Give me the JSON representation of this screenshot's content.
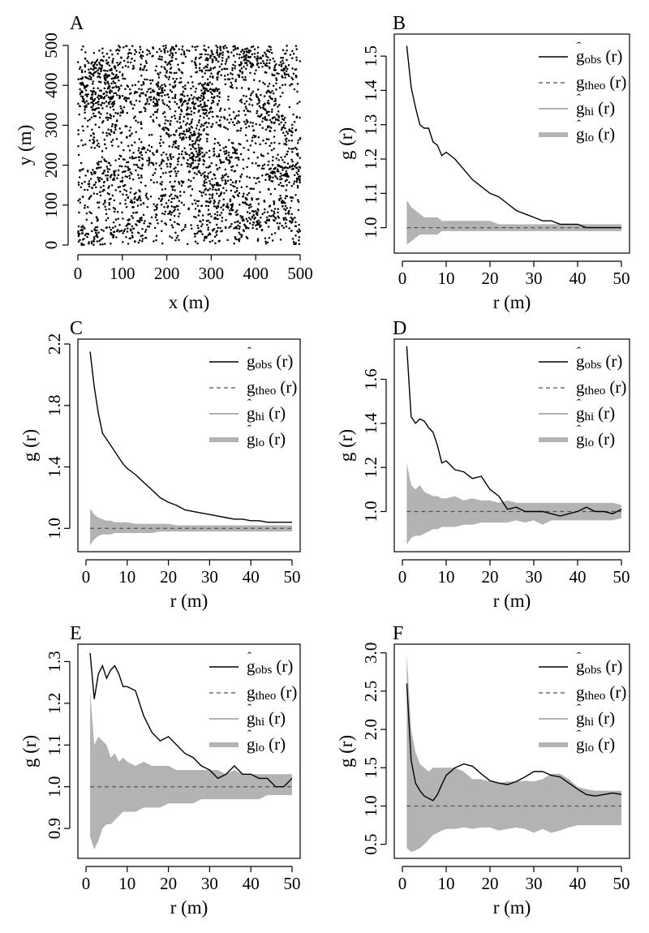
{
  "legend_labels": {
    "obs": {
      "base": "g",
      "sub": "obs",
      "suffix": "(r)",
      "hat": true
    },
    "theo": {
      "base": "g",
      "sub": "theo",
      "suffix": "(r)",
      "hat": false
    },
    "hi": {
      "base": "g",
      "sub": "hi",
      "suffix": "(r)",
      "hat": true
    },
    "lo": {
      "base": "g",
      "sub": "lo",
      "suffix": "(r)",
      "hat": true
    }
  },
  "colors": {
    "observed": "#000000",
    "theoretical": "#555555",
    "envelope": "#b3b3b3",
    "points": "#000000"
  },
  "chart_data": [
    {
      "panel": "A",
      "type": "scatter",
      "xlabel": "x (m)",
      "ylabel": "y (m)",
      "xlim": [
        0,
        500
      ],
      "ylim": [
        0,
        500
      ],
      "xticks": [
        "0",
        "100",
        "200",
        "300",
        "400",
        "500"
      ],
      "yticks": [
        "0",
        "100",
        "200",
        "300",
        "400",
        "500"
      ],
      "point_count": 3000
    },
    {
      "panel": "B",
      "type": "line",
      "xlabel": "r (m)",
      "ylabel": "g (r)",
      "xlim": [
        0,
        50
      ],
      "ylim": [
        0.94,
        1.55
      ],
      "xticks": [
        "0",
        "10",
        "20",
        "30",
        "40",
        "50"
      ],
      "yticks": [
        "1.0",
        "1.1",
        "1.2",
        "1.3",
        "1.4",
        "1.5"
      ],
      "legend": "top-right",
      "r": [
        1,
        2,
        3,
        4,
        5,
        6,
        7,
        8,
        9,
        10,
        12,
        14,
        16,
        18,
        20,
        22,
        24,
        26,
        28,
        30,
        32,
        34,
        36,
        38,
        40,
        42,
        44,
        46,
        48,
        50
      ],
      "g_obs": [
        1.53,
        1.41,
        1.35,
        1.3,
        1.29,
        1.29,
        1.25,
        1.24,
        1.21,
        1.22,
        1.2,
        1.17,
        1.14,
        1.12,
        1.1,
        1.09,
        1.07,
        1.05,
        1.04,
        1.03,
        1.02,
        1.02,
        1.01,
        1.01,
        1.01,
        1.0,
        1.0,
        1.0,
        1.0,
        1.0
      ],
      "g_theo": 1.0,
      "g_hi": [
        1.08,
        1.06,
        1.05,
        1.04,
        1.03,
        1.03,
        1.03,
        1.03,
        1.02,
        1.02,
        1.02,
        1.02,
        1.02,
        1.02,
        1.02,
        1.01,
        1.01,
        1.01,
        1.01,
        1.01,
        1.01,
        1.01,
        1.01,
        1.01,
        1.01,
        1.01,
        1.01,
        1.01,
        1.01,
        1.01
      ],
      "g_lo": [
        0.95,
        0.96,
        0.97,
        0.98,
        0.98,
        0.98,
        0.98,
        0.98,
        0.99,
        0.99,
        0.99,
        0.99,
        0.99,
        0.99,
        0.99,
        0.99,
        0.99,
        0.99,
        0.99,
        0.99,
        0.99,
        0.99,
        0.99,
        0.99,
        0.99,
        0.99,
        0.99,
        0.99,
        0.99,
        0.99
      ]
    },
    {
      "panel": "C",
      "type": "line",
      "xlabel": "r (m)",
      "ylabel": "g (r)",
      "xlim": [
        0,
        50
      ],
      "ylim": [
        0.88,
        2.2
      ],
      "xticks": [
        "0",
        "10",
        "20",
        "30",
        "40",
        "50"
      ],
      "yticks": [
        "1.0",
        "1.4",
        "1.8",
        "2.2"
      ],
      "legend": "top-right",
      "r": [
        1,
        2,
        3,
        4,
        5,
        6,
        7,
        8,
        9,
        10,
        12,
        14,
        16,
        18,
        20,
        22,
        24,
        26,
        28,
        30,
        32,
        34,
        36,
        38,
        40,
        42,
        44,
        46,
        48,
        50
      ],
      "g_obs": [
        2.15,
        1.92,
        1.75,
        1.62,
        1.58,
        1.54,
        1.5,
        1.46,
        1.42,
        1.39,
        1.35,
        1.3,
        1.25,
        1.2,
        1.17,
        1.15,
        1.12,
        1.11,
        1.1,
        1.09,
        1.08,
        1.07,
        1.06,
        1.06,
        1.05,
        1.05,
        1.04,
        1.04,
        1.04,
        1.04
      ],
      "g_theo": 1.0,
      "g_hi": [
        1.13,
        1.09,
        1.07,
        1.06,
        1.05,
        1.05,
        1.04,
        1.04,
        1.04,
        1.04,
        1.03,
        1.03,
        1.03,
        1.03,
        1.03,
        1.02,
        1.02,
        1.02,
        1.02,
        1.02,
        1.02,
        1.02,
        1.02,
        1.02,
        1.02,
        1.02,
        1.02,
        1.02,
        1.02,
        1.02
      ],
      "g_lo": [
        0.89,
        0.93,
        0.95,
        0.96,
        0.96,
        0.96,
        0.97,
        0.97,
        0.97,
        0.97,
        0.97,
        0.97,
        0.97,
        0.98,
        0.98,
        0.98,
        0.98,
        0.98,
        0.98,
        0.98,
        0.98,
        0.98,
        0.98,
        0.98,
        0.98,
        0.98,
        0.98,
        0.98,
        0.98,
        0.98
      ]
    },
    {
      "panel": "D",
      "type": "line",
      "xlabel": "r (m)",
      "ylabel": "g (r)",
      "xlim": [
        0,
        50
      ],
      "ylim": [
        0.84,
        1.76
      ],
      "xticks": [
        "0",
        "10",
        "20",
        "30",
        "40",
        "50"
      ],
      "yticks": [
        "1.0",
        "1.2",
        "1.4",
        "1.6"
      ],
      "legend": "top-right",
      "r": [
        1,
        2,
        3,
        4,
        5,
        6,
        7,
        8,
        9,
        10,
        12,
        14,
        16,
        18,
        20,
        22,
        24,
        26,
        28,
        30,
        32,
        34,
        36,
        38,
        40,
        42,
        44,
        46,
        48,
        50
      ],
      "g_obs": [
        1.75,
        1.43,
        1.4,
        1.42,
        1.41,
        1.38,
        1.36,
        1.3,
        1.22,
        1.23,
        1.19,
        1.18,
        1.15,
        1.16,
        1.1,
        1.07,
        1.01,
        1.02,
        1.0,
        1.0,
        1.0,
        0.99,
        0.98,
        0.99,
        1.0,
        1.02,
        1.0,
        1.0,
        0.99,
        1.01
      ],
      "g_theo": 1.0,
      "g_hi": [
        1.22,
        1.12,
        1.1,
        1.12,
        1.09,
        1.08,
        1.07,
        1.07,
        1.06,
        1.06,
        1.07,
        1.05,
        1.06,
        1.05,
        1.05,
        1.04,
        1.05,
        1.04,
        1.04,
        1.04,
        1.04,
        1.04,
        1.04,
        1.04,
        1.04,
        1.04,
        1.04,
        1.04,
        1.04,
        1.03
      ],
      "g_lo": [
        0.85,
        0.88,
        0.89,
        0.89,
        0.9,
        0.91,
        0.92,
        0.92,
        0.93,
        0.93,
        0.93,
        0.94,
        0.94,
        0.95,
        0.95,
        0.95,
        0.95,
        0.96,
        0.95,
        0.96,
        0.94,
        0.96,
        0.96,
        0.96,
        0.96,
        0.96,
        0.96,
        0.96,
        0.96,
        0.97
      ]
    },
    {
      "panel": "E",
      "type": "line",
      "xlabel": "r (m)",
      "ylabel": "g (r)",
      "xlim": [
        0,
        50
      ],
      "ylim": [
        0.84,
        1.33
      ],
      "xticks": [
        "0",
        "10",
        "20",
        "30",
        "40",
        "50"
      ],
      "yticks": [
        "0.9",
        "1.0",
        "1.1",
        "1.2",
        "1.3"
      ],
      "legend": "top-right",
      "r": [
        1,
        2,
        3,
        4,
        5,
        6,
        7,
        8,
        9,
        10,
        12,
        14,
        16,
        18,
        20,
        22,
        24,
        26,
        28,
        30,
        32,
        34,
        36,
        38,
        40,
        42,
        44,
        46,
        48,
        50
      ],
      "g_obs": [
        1.32,
        1.21,
        1.27,
        1.29,
        1.26,
        1.28,
        1.29,
        1.27,
        1.24,
        1.24,
        1.23,
        1.17,
        1.13,
        1.11,
        1.12,
        1.1,
        1.08,
        1.07,
        1.05,
        1.04,
        1.02,
        1.03,
        1.05,
        1.03,
        1.03,
        1.02,
        1.02,
        1.0,
        1.0,
        1.02
      ],
      "g_theo": 1.0,
      "g_hi": [
        1.23,
        1.1,
        1.12,
        1.11,
        1.1,
        1.07,
        1.08,
        1.06,
        1.07,
        1.06,
        1.05,
        1.06,
        1.05,
        1.05,
        1.05,
        1.04,
        1.04,
        1.04,
        1.04,
        1.04,
        1.04,
        1.03,
        1.04,
        1.03,
        1.03,
        1.03,
        1.03,
        1.03,
        1.03,
        1.03
      ],
      "g_lo": [
        0.88,
        0.85,
        0.87,
        0.9,
        0.91,
        0.91,
        0.92,
        0.93,
        0.94,
        0.94,
        0.94,
        0.95,
        0.95,
        0.95,
        0.96,
        0.96,
        0.96,
        0.96,
        0.97,
        0.97,
        0.97,
        0.97,
        0.97,
        0.97,
        0.97,
        0.97,
        0.98,
        0.98,
        0.98,
        0.98
      ]
    },
    {
      "panel": "F",
      "type": "line",
      "xlabel": "r (m)",
      "ylabel": "g (r)",
      "xlim": [
        0,
        50
      ],
      "ylim": [
        0.38,
        3.05
      ],
      "xticks": [
        "0",
        "10",
        "20",
        "30",
        "40",
        "50"
      ],
      "yticks": [
        "0.5",
        "1.0",
        "1.5",
        "2.0",
        "2.5",
        "3.0"
      ],
      "legend": "top-right",
      "r": [
        1,
        2,
        3,
        4,
        5,
        6,
        7,
        8,
        9,
        10,
        12,
        14,
        16,
        18,
        20,
        22,
        24,
        26,
        28,
        30,
        32,
        34,
        36,
        38,
        40,
        42,
        44,
        46,
        48,
        50
      ],
      "g_obs": [
        2.6,
        1.6,
        1.3,
        1.2,
        1.13,
        1.1,
        1.07,
        1.15,
        1.28,
        1.4,
        1.5,
        1.55,
        1.52,
        1.42,
        1.33,
        1.3,
        1.28,
        1.32,
        1.38,
        1.45,
        1.45,
        1.4,
        1.38,
        1.3,
        1.22,
        1.15,
        1.13,
        1.15,
        1.17,
        1.15
      ],
      "g_theo": 1.0,
      "g_hi": [
        3.0,
        2.0,
        1.7,
        1.55,
        1.5,
        1.45,
        1.5,
        1.5,
        1.5,
        1.5,
        1.5,
        1.45,
        1.35,
        1.35,
        1.32,
        1.3,
        1.32,
        1.32,
        1.33,
        1.32,
        1.35,
        1.42,
        1.42,
        1.35,
        1.25,
        1.22,
        1.2,
        1.2,
        1.2,
        1.2
      ],
      "g_lo": [
        0.45,
        0.4,
        0.42,
        0.45,
        0.5,
        0.56,
        0.62,
        0.65,
        0.68,
        0.7,
        0.7,
        0.72,
        0.7,
        0.72,
        0.72,
        0.68,
        0.7,
        0.72,
        0.7,
        0.65,
        0.7,
        0.65,
        0.68,
        0.72,
        0.75,
        0.75,
        0.75,
        0.75,
        0.75,
        0.75
      ]
    }
  ]
}
